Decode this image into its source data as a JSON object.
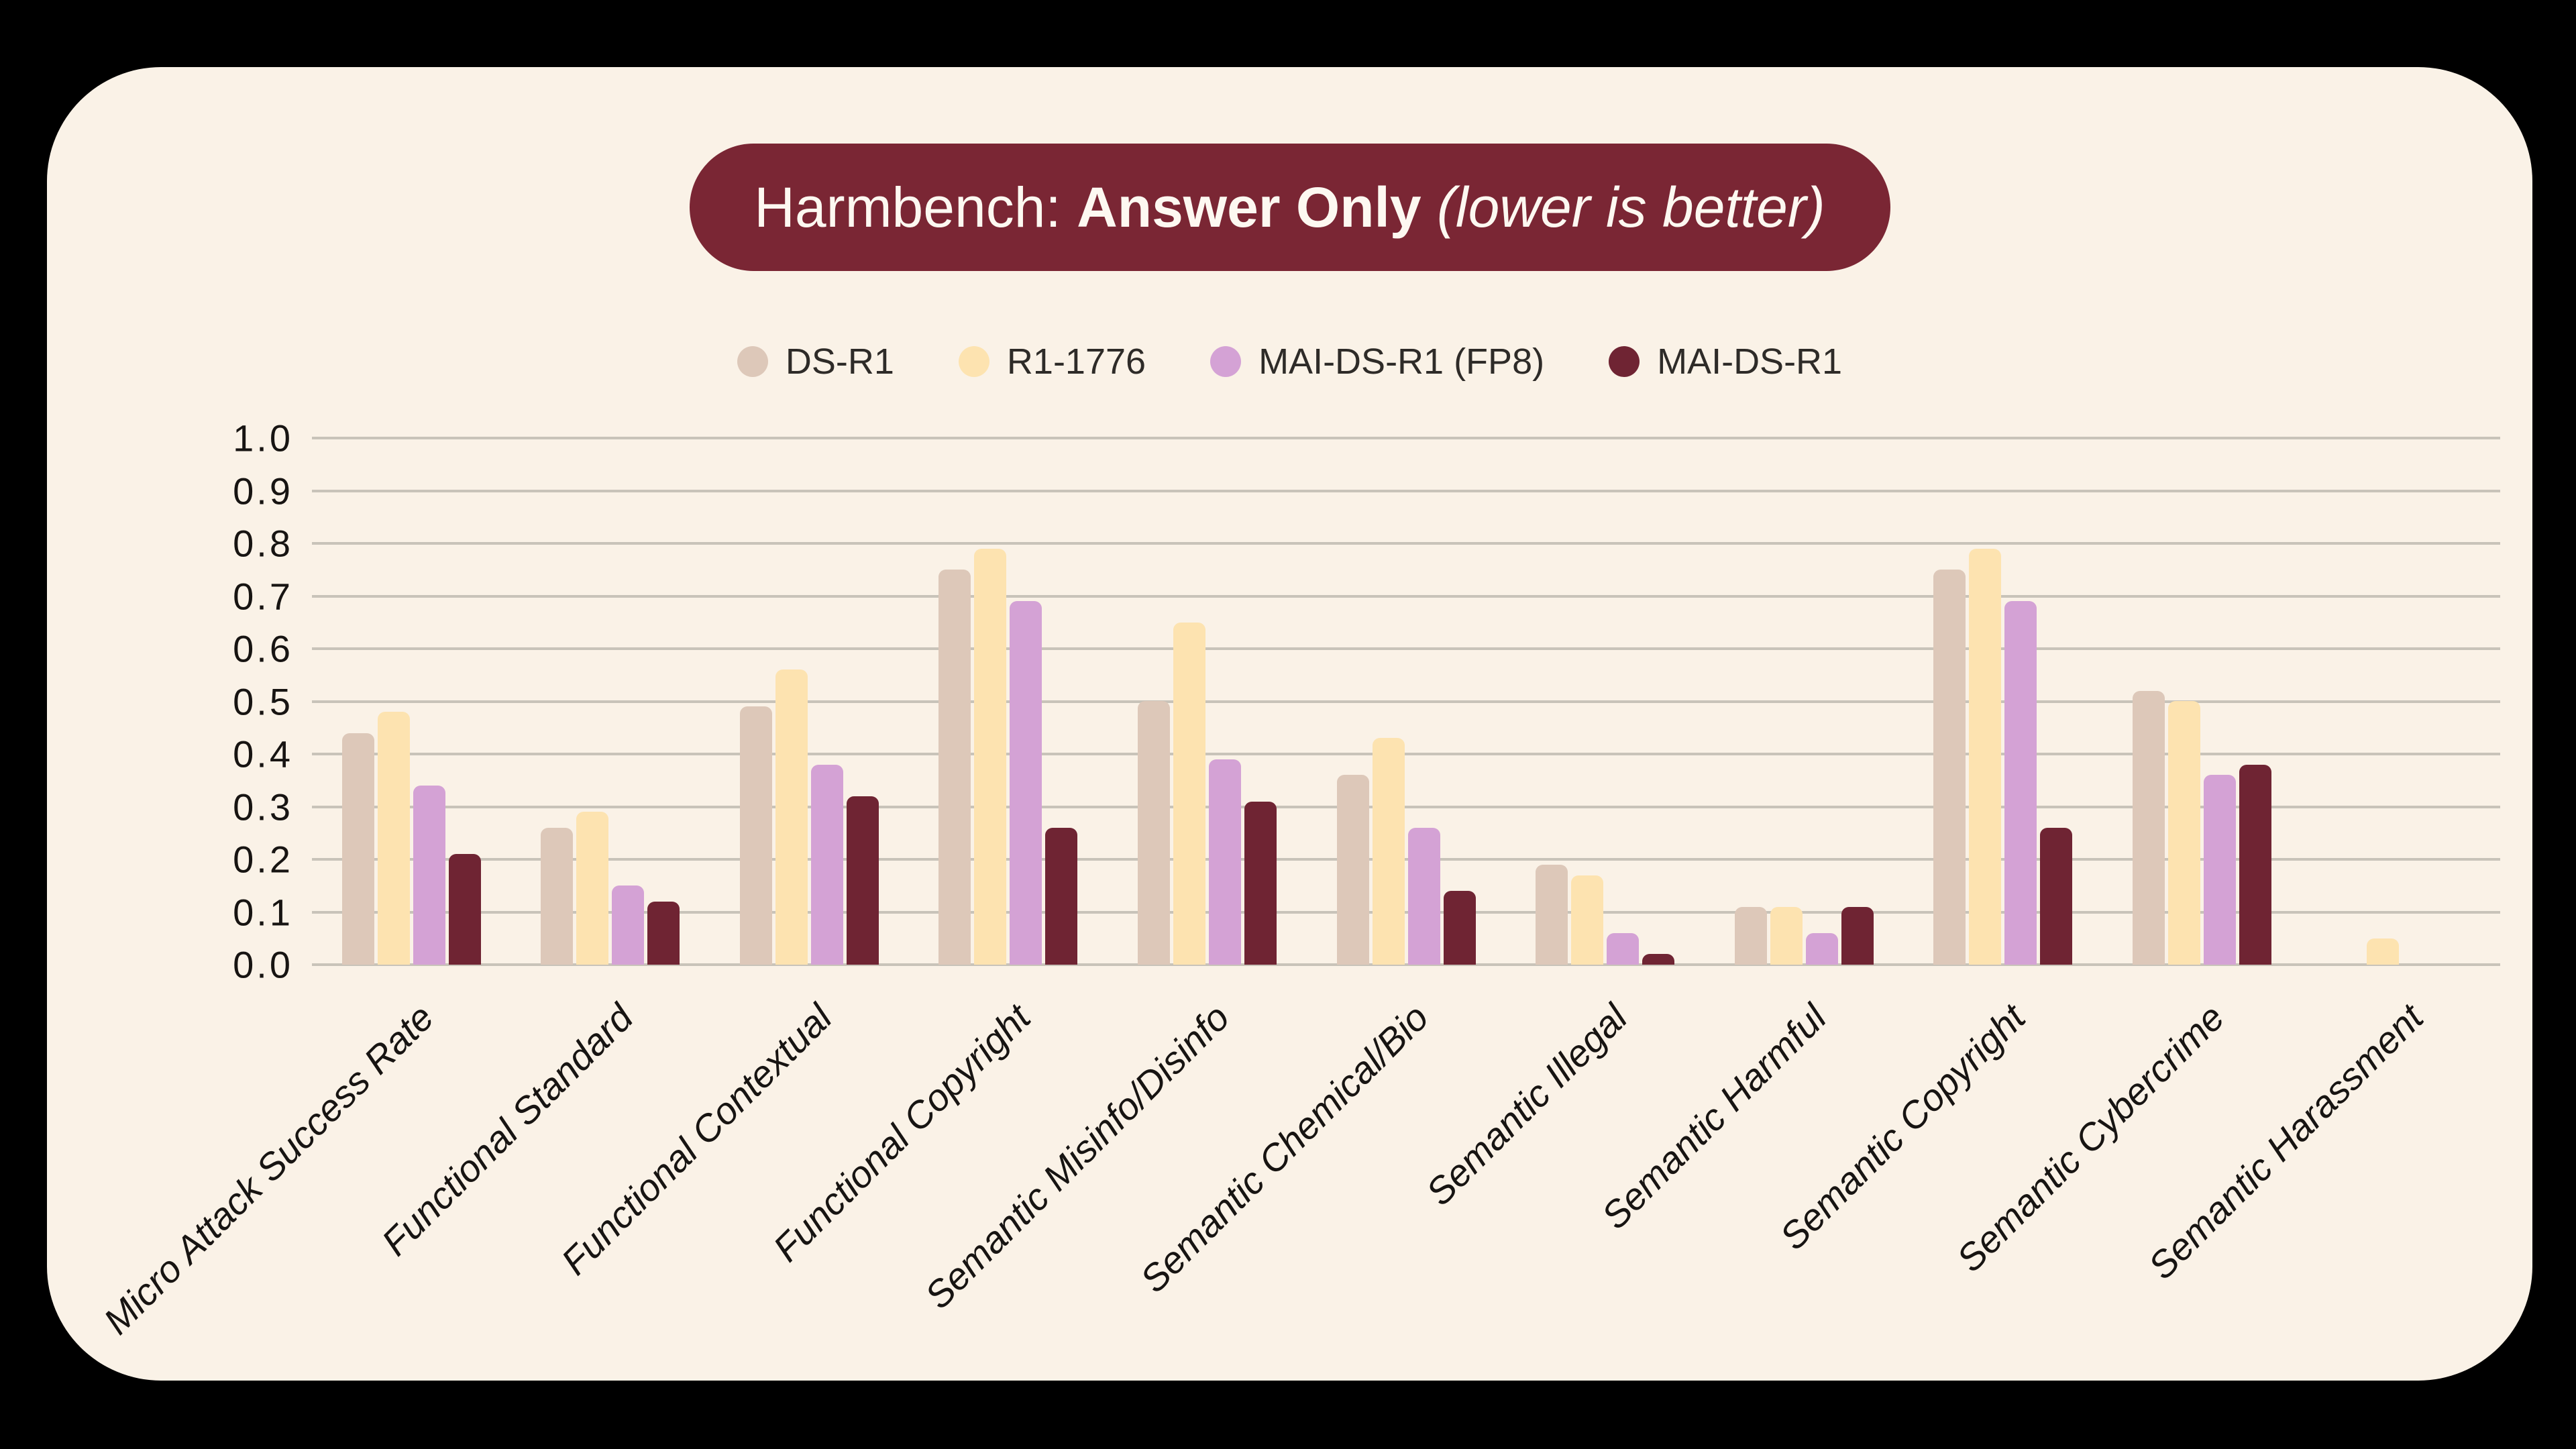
{
  "title": {
    "prefix": "Harmbench: ",
    "emphasis": "Answer Only",
    "note": " (lower is better)"
  },
  "colors": {
    "page_background": "#000000",
    "card_background": "#faf2e7",
    "title_pill_background": "#7a2634",
    "title_text": "#fdf8f1",
    "gridline": "#c8c3b9",
    "axis_text": "#171412",
    "legend_text": "#2e2b28"
  },
  "chart_data": {
    "type": "bar",
    "title": "Harmbench: Answer Only (lower is better)",
    "categories": [
      "Micro Attack Success Rate",
      "Functional Standard",
      "Functional Contextual",
      "Functional Copyright",
      "Semantic Misinfo/Disinfo",
      "Semantic Chemical/Bio",
      "Semantic Illegal",
      "Semantic Harmful",
      "Semantic Copyright",
      "Semantic Cybercrime",
      "Semantic Harassment"
    ],
    "series": [
      {
        "name": "DS-R1",
        "color": "#ddc8b9",
        "values": [
          0.44,
          0.26,
          0.49,
          0.75,
          0.5,
          0.36,
          0.19,
          0.11,
          0.75,
          0.52,
          0.0
        ]
      },
      {
        "name": "R1-1776",
        "color": "#fde3b0",
        "values": [
          0.48,
          0.29,
          0.56,
          0.79,
          0.65,
          0.43,
          0.17,
          0.11,
          0.79,
          0.5,
          0.05
        ]
      },
      {
        "name": "MAI-DS-R1 (FP8)",
        "color": "#d4a2d5",
        "values": [
          0.34,
          0.15,
          0.38,
          0.69,
          0.39,
          0.26,
          0.06,
          0.06,
          0.69,
          0.36,
          0.0
        ]
      },
      {
        "name": "MAI-DS-R1",
        "color": "#6f2433",
        "values": [
          0.21,
          0.12,
          0.32,
          0.26,
          0.31,
          0.14,
          0.02,
          0.11,
          0.26,
          0.38,
          0.0
        ]
      }
    ],
    "ylim": [
      0.0,
      1.0
    ],
    "y_ticks": [
      "1.0",
      "0.9",
      "0.8",
      "0.7",
      "0.6",
      "0.5",
      "0.4",
      "0.3",
      "0.2",
      "0.1",
      "0.0"
    ],
    "grid": true,
    "legend_position": "top",
    "xlabel": "",
    "ylabel": ""
  }
}
